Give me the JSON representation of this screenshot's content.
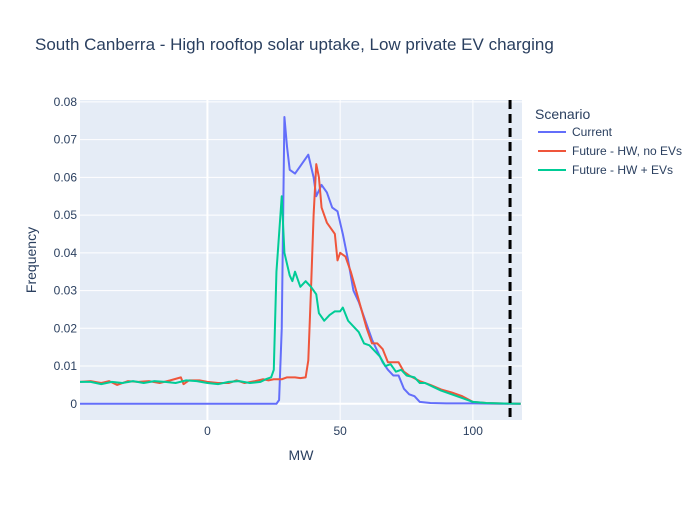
{
  "chart_data": {
    "type": "line",
    "title": "South Canberra - High rooftop solar uptake, Low private EV charging",
    "x_label": "MW",
    "y_label": "Frequency",
    "legend_title": "Scenario",
    "legend_position": "right",
    "grid": true,
    "xlim": [
      -48,
      118.5
    ],
    "xticks": [
      0,
      50,
      100
    ],
    "ylim": [
      -0.0043,
      0.0805
    ],
    "yticks": [
      0,
      0.01,
      0.02,
      0.03,
      0.04,
      0.05,
      0.06,
      0.07,
      0.08
    ],
    "vline": 114,
    "series": [
      {
        "name": "Current",
        "color": "#636efa",
        "x": [
          -48,
          0,
          26,
          27,
          28,
          29,
          30,
          31,
          33,
          35,
          38,
          40,
          41,
          43,
          45,
          47,
          49,
          51,
          53,
          55,
          57,
          60,
          62,
          64,
          66,
          68,
          70,
          72,
          74,
          76,
          78,
          80,
          84,
          90,
          100,
          110,
          118
        ],
        "values": [
          0,
          0,
          0,
          0.001,
          0.02,
          0.076,
          0.068,
          0.062,
          0.061,
          0.063,
          0.066,
          0.06,
          0.055,
          0.058,
          0.056,
          0.052,
          0.051,
          0.045,
          0.038,
          0.03,
          0.027,
          0.021,
          0.017,
          0.014,
          0.011,
          0.009,
          0.0075,
          0.0075,
          0.004,
          0.0025,
          0.002,
          0.0005,
          0.0002,
          0.0001,
          0.0001,
          0,
          0
        ]
      },
      {
        "name": "Future - HW, no EVs",
        "color": "#EF553B",
        "x": [
          -48,
          -44,
          -40,
          -37,
          -34,
          -30,
          -26,
          -22,
          -18,
          -14,
          -10,
          -9,
          -7,
          -3,
          0,
          4,
          8,
          11,
          14,
          18,
          21,
          23,
          25,
          28,
          30,
          33,
          35,
          37,
          38,
          39,
          40,
          41,
          42,
          43,
          45,
          47,
          48,
          49,
          50,
          52,
          54,
          56,
          58,
          60,
          62,
          64,
          66,
          68,
          70,
          72,
          74,
          76,
          80,
          84,
          88,
          92,
          96,
          100,
          105,
          110,
          118
        ],
        "values": [
          0.0058,
          0.006,
          0.0055,
          0.006,
          0.005,
          0.006,
          0.0058,
          0.006,
          0.0055,
          0.0062,
          0.007,
          0.0052,
          0.0062,
          0.0062,
          0.0058,
          0.0055,
          0.0055,
          0.0062,
          0.0055,
          0.006,
          0.0065,
          0.0062,
          0.0065,
          0.0065,
          0.007,
          0.007,
          0.0068,
          0.007,
          0.0115,
          0.03,
          0.05,
          0.0635,
          0.06,
          0.052,
          0.048,
          0.046,
          0.045,
          0.038,
          0.04,
          0.039,
          0.035,
          0.03,
          0.025,
          0.02,
          0.016,
          0.016,
          0.0145,
          0.011,
          0.011,
          0.011,
          0.0085,
          0.0075,
          0.006,
          0.005,
          0.0038,
          0.003,
          0.002,
          0.0005,
          0.0002,
          0.0001,
          0
        ]
      },
      {
        "name": "Future - HW + EVs",
        "color": "#00cc96",
        "x": [
          -48,
          -44,
          -40,
          -36,
          -32,
          -28,
          -24,
          -20,
          -16,
          -12,
          -8,
          -4,
          0,
          4,
          8,
          12,
          16,
          20,
          22,
          24,
          25,
          26,
          28,
          29,
          31,
          32,
          33,
          35,
          37,
          39,
          41,
          42,
          44,
          46,
          48,
          50,
          51,
          53,
          55,
          57,
          59,
          61,
          63,
          65,
          67,
          69,
          71,
          73,
          75,
          78,
          80,
          82,
          85,
          88,
          92,
          96,
          100,
          105,
          110,
          118
        ],
        "values": [
          0.0058,
          0.0058,
          0.0052,
          0.0058,
          0.0055,
          0.006,
          0.0055,
          0.006,
          0.0058,
          0.0055,
          0.0062,
          0.006,
          0.0055,
          0.0052,
          0.0058,
          0.006,
          0.0055,
          0.0058,
          0.0065,
          0.007,
          0.009,
          0.035,
          0.055,
          0.04,
          0.034,
          0.0325,
          0.035,
          0.031,
          0.0325,
          0.031,
          0.029,
          0.024,
          0.022,
          0.0235,
          0.0245,
          0.0245,
          0.0255,
          0.022,
          0.0205,
          0.019,
          0.016,
          0.0155,
          0.014,
          0.0125,
          0.01,
          0.0105,
          0.0085,
          0.009,
          0.0075,
          0.007,
          0.0055,
          0.0055,
          0.0045,
          0.0035,
          0.0025,
          0.0015,
          0.0005,
          0.0002,
          0.0001,
          0
        ]
      }
    ]
  }
}
